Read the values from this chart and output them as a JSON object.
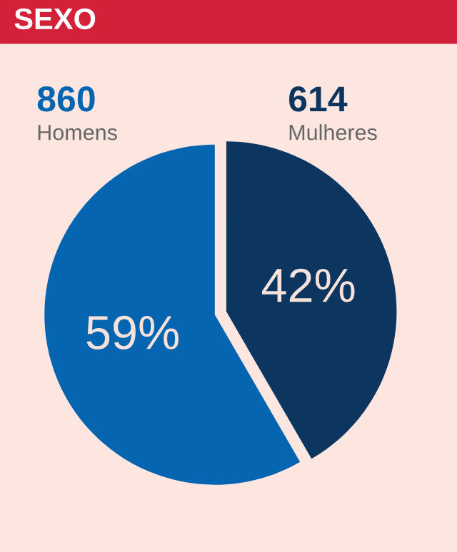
{
  "chart_data": {
    "type": "pie",
    "title": "SEXO",
    "categories": [
      "Mulheres",
      "Homens"
    ],
    "values": [
      614,
      860
    ],
    "value_labels": [
      "614",
      "860"
    ],
    "annotations": [
      "42%",
      "59%"
    ],
    "colors": [
      "#0c3660",
      "#0565b0"
    ],
    "data_labels": true,
    "legend": false
  }
}
